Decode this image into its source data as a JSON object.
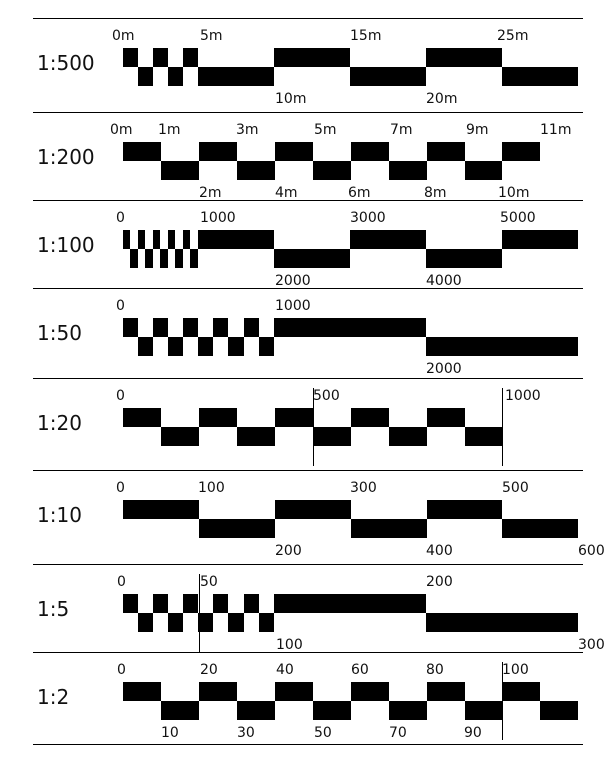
{
  "colors": {
    "ink": "#000000",
    "background": "#ffffff"
  },
  "scales": [
    {
      "scale": "1:500",
      "top_labels": [
        "0m",
        "5m",
        "15m",
        "25m"
      ],
      "bottom_labels": [
        "10m",
        "20m"
      ]
    },
    {
      "scale": "1:200",
      "top_labels": [
        "0m",
        "1m",
        "3m",
        "5m",
        "7m",
        "9m",
        "11m"
      ],
      "bottom_labels": [
        "2m",
        "4m",
        "6m",
        "8m",
        "10m"
      ]
    },
    {
      "scale": "1:100",
      "top_labels": [
        "0",
        "1000",
        "3000",
        "5000"
      ],
      "bottom_labels": [
        "2000",
        "4000"
      ]
    },
    {
      "scale": "1:50",
      "top_labels": [
        "0",
        "1000"
      ],
      "bottom_labels": [
        "2000"
      ]
    },
    {
      "scale": "1:20",
      "top_labels": [
        "0",
        "500",
        "1000"
      ],
      "bottom_labels": []
    },
    {
      "scale": "1:10",
      "top_labels": [
        "0",
        "100",
        "300",
        "500"
      ],
      "bottom_labels": [
        "200",
        "400",
        "600"
      ]
    },
    {
      "scale": "1:5",
      "top_labels": [
        "0",
        "50",
        "200"
      ],
      "bottom_labels": [
        "100",
        "300"
      ]
    },
    {
      "scale": "1:2",
      "top_labels": [
        "0",
        "20",
        "40",
        "60",
        "80",
        "100"
      ],
      "bottom_labels": [
        "10",
        "30",
        "50",
        "70",
        "90"
      ]
    }
  ]
}
